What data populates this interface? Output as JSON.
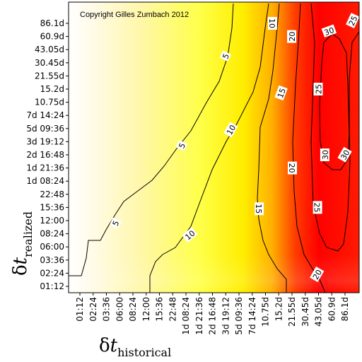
{
  "chart_data": {
    "type": "heatmap",
    "copyright": "Copyright Gilles Zumbach 2012",
    "xlabel": {
      "symbol": "δ",
      "var": "t",
      "sub": "historical"
    },
    "ylabel": {
      "symbol": "δ",
      "var": "t",
      "sub": "realized"
    },
    "x_ticks": [
      "01:12",
      "02:24",
      "03:36",
      "06:00",
      "08:24",
      "12:00",
      "15:36",
      "22:48",
      "1d 08:24",
      "1d 21:36",
      "2d 16:48",
      "3d 19:12",
      "5d 09:36",
      "7d 14:24",
      "10.75d",
      "15.2d",
      "21.55d",
      "30.45d",
      "43.05d",
      "60.9d",
      "86.1d"
    ],
    "y_ticks": [
      "01:12",
      "02:24",
      "03:36",
      "06:00",
      "08:24",
      "12:00",
      "15:36",
      "22:48",
      "1d 08:24",
      "1d 21:36",
      "2d 16:48",
      "3d 19:12",
      "5d 09:36",
      "7d 14:24",
      "10.75d",
      "15.2d",
      "21.55d",
      "30.45d",
      "43.05d",
      "60.9d",
      "86.1d"
    ],
    "contour_levels": [
      5,
      10,
      15,
      20,
      25,
      30
    ],
    "contour_labels": [
      {
        "text": "5",
        "x": 11.0,
        "y": 17.5,
        "angle": -65
      },
      {
        "text": "5",
        "x": 7.7,
        "y": 10.7,
        "angle": -65
      },
      {
        "text": "5",
        "x": 2.7,
        "y": 4.8,
        "angle": -65
      },
      {
        "text": "10",
        "x": 14.5,
        "y": 20.0,
        "angle": 90
      },
      {
        "text": "10",
        "x": 11.4,
        "y": 11.9,
        "angle": -60
      },
      {
        "text": "10",
        "x": 8.3,
        "y": 3.9,
        "angle": -40
      },
      {
        "text": "15",
        "x": 15.2,
        "y": 14.7,
        "angle": -70
      },
      {
        "text": "15",
        "x": 13.5,
        "y": 5.9,
        "angle": 90
      },
      {
        "text": "20",
        "x": 16.0,
        "y": 19.0,
        "angle": -90
      },
      {
        "text": "20",
        "x": 16.0,
        "y": 9.0,
        "angle": 90
      },
      {
        "text": "20",
        "x": 17.9,
        "y": 0.9,
        "angle": -60
      },
      {
        "text": "25",
        "x": 18.0,
        "y": 15.0,
        "angle": -90
      },
      {
        "text": "25",
        "x": 17.9,
        "y": 6.0,
        "angle": 90
      },
      {
        "text": "30",
        "x": 18.8,
        "y": 19.4,
        "angle": -20
      },
      {
        "text": "30",
        "x": 18.5,
        "y": 10.0,
        "angle": -90
      },
      {
        "text": "30",
        "x": 20.0,
        "y": 10.0,
        "angle": -60
      },
      {
        "text": "25",
        "x": 20.6,
        "y": 20.2,
        "angle": -65
      }
    ],
    "colors": {
      "low": "#ffffff",
      "mid": "#ffff00",
      "high": "#ff0000",
      "contour": "#000000"
    },
    "grid": false,
    "legend": "none"
  }
}
